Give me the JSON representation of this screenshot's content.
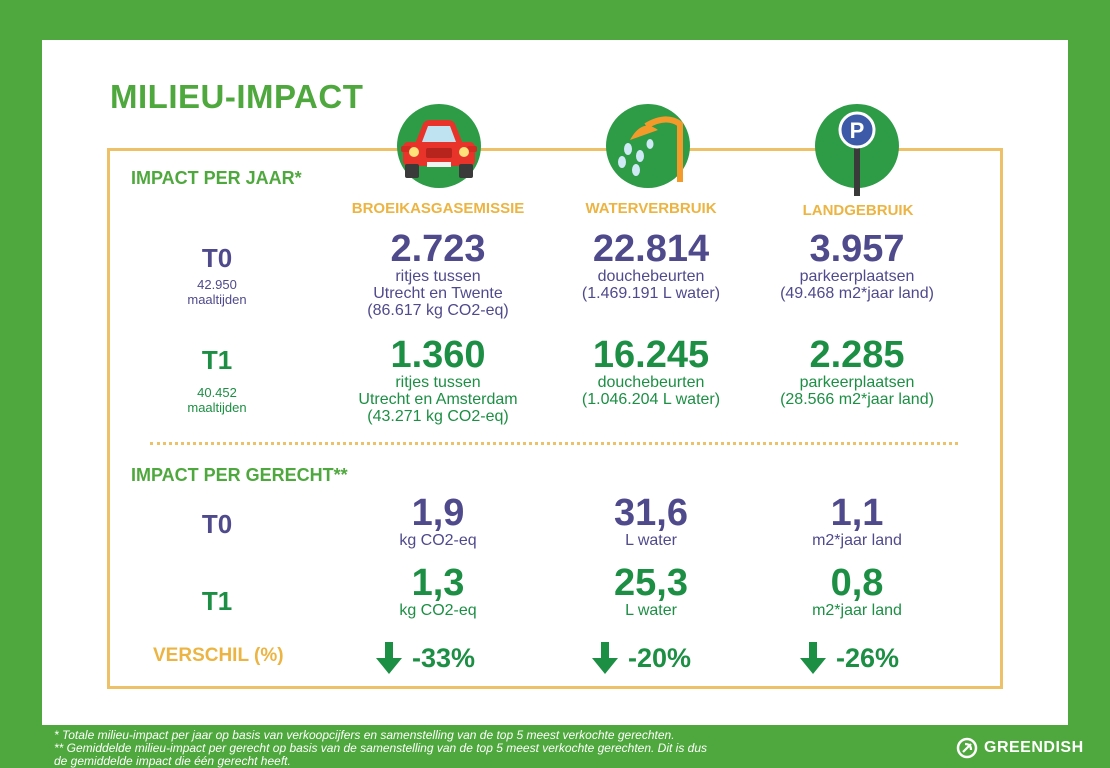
{
  "title": "MILIEU-IMPACT",
  "colors": {
    "green": "#4fa83d",
    "dark_green": "#1c8f44",
    "purple": "#4f4a8c",
    "gold": "#ecb442"
  },
  "icons": [
    "car-icon",
    "shower-icon",
    "parking-sign-icon"
  ],
  "per_jaar": {
    "heading": "IMPACT PER JAAR*",
    "columns": [
      "BROEIKASGASEMISSIE",
      "WATERVERBRUIK",
      "LANDGEBRUIK"
    ],
    "t0": {
      "label": "T0",
      "count": "42.950",
      "unit": "maaltijden",
      "emissie": {
        "value": "2.723",
        "line1": "ritjes tussen",
        "line2": "Utrecht en Twente",
        "line3": "(86.617 kg CO2-eq)"
      },
      "water": {
        "value": "22.814",
        "line1": "douchebeurten",
        "line2": "(1.469.191 L water)"
      },
      "land": {
        "value": "3.957",
        "line1": "parkeerplaatsen",
        "line2": "(49.468 m2*jaar land)"
      }
    },
    "t1": {
      "label": "T1",
      "count": "40.452",
      "unit": "maaltijden",
      "emissie": {
        "value": "1.360",
        "line1": "ritjes tussen",
        "line2": "Utrecht en Amsterdam",
        "line3": "(43.271 kg CO2-eq)"
      },
      "water": {
        "value": "16.245",
        "line1": "douchebeurten",
        "line2": "(1.046.204 L water)"
      },
      "land": {
        "value": "2.285",
        "line1": "parkeerplaatsen",
        "line2": "(28.566 m2*jaar land)"
      }
    }
  },
  "per_gerecht": {
    "heading": "IMPACT PER GERECHT**",
    "t0": {
      "label": "T0",
      "emissie": {
        "value": "1,9",
        "unit": "kg CO2-eq"
      },
      "water": {
        "value": "31,6",
        "unit": "L water"
      },
      "land": {
        "value": "1,1",
        "unit": "m2*jaar land"
      }
    },
    "t1": {
      "label": "T1",
      "emissie": {
        "value": "1,3",
        "unit": "kg CO2-eq"
      },
      "water": {
        "value": "25,3",
        "unit": "L water"
      },
      "land": {
        "value": "0,8",
        "unit": "m2*jaar land"
      }
    },
    "verschil": {
      "label": "VERSCHIL (%)",
      "emissie": "-33%",
      "water": "-20%",
      "land": "-26%"
    }
  },
  "footer": {
    "note1": "* Totale milieu-impact per jaar op basis van verkoopcijfers en samenstelling van de top 5 meest verkochte gerechten.",
    "note2": "** Gemiddelde milieu-impact per gerecht op basis van de samenstelling van de top 5 meest verkochte gerechten. Dit is dus",
    "note3": "de gemiddelde impact die één gerecht heeft."
  },
  "brand": "GREENDISH"
}
